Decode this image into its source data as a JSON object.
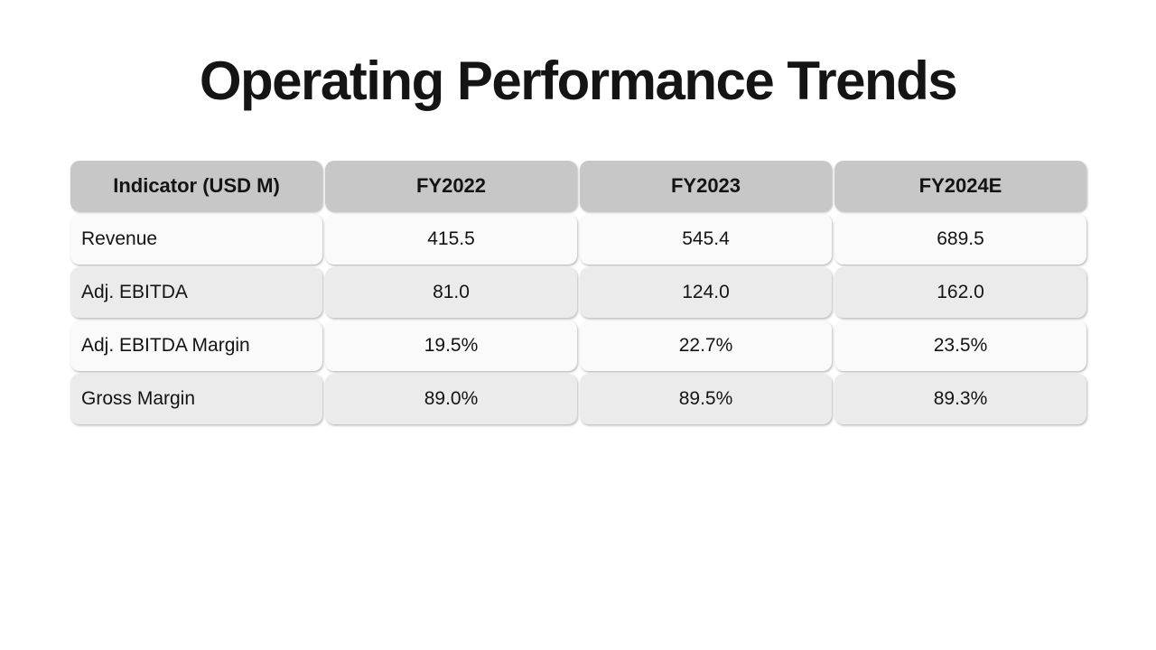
{
  "slide": {
    "title": "Operating Performance Trends"
  },
  "table": {
    "columns": [
      "Indicator (USD M)",
      "FY2022",
      "FY2023",
      "FY2024E"
    ],
    "rows": [
      {
        "label": "Revenue",
        "values": [
          "415.5",
          "545.4",
          "689.5"
        ]
      },
      {
        "label": "Adj. EBITDA",
        "values": [
          "81.0",
          "124.0",
          "162.0"
        ]
      },
      {
        "label": "Adj. EBITDA Margin",
        "values": [
          "19.5%",
          "22.7%",
          "23.5%"
        ]
      },
      {
        "label": "Gross Margin",
        "values": [
          "89.0%",
          "89.5%",
          "89.3%"
        ]
      }
    ],
    "colors": {
      "header_bg": "#c7c7c7",
      "row_odd_bg": "#fafafa",
      "row_even_bg": "#ebebeb",
      "text": "#141414"
    }
  }
}
